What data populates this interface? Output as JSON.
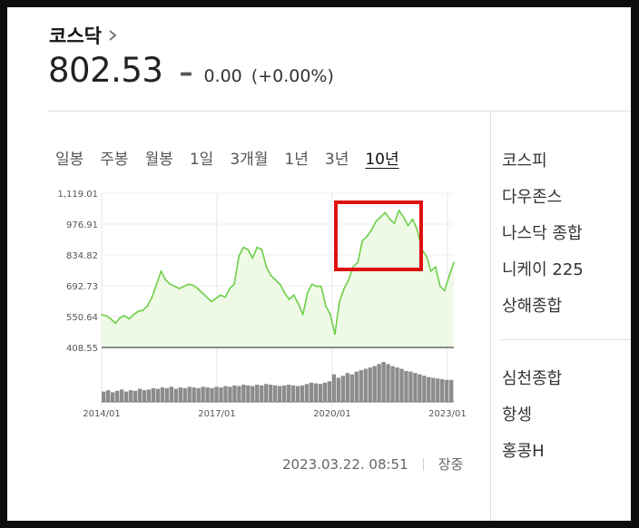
{
  "header": {
    "title": "코스닥",
    "price": "802.53",
    "change_sign": "–",
    "change": "0.00",
    "change_pct": "(+0.00%)"
  },
  "tabs": [
    {
      "label": "일봉",
      "active": false
    },
    {
      "label": "주봉",
      "active": false
    },
    {
      "label": "월봉",
      "active": false
    },
    {
      "label": "1일",
      "active": false
    },
    {
      "label": "3개월",
      "active": false
    },
    {
      "label": "1년",
      "active": false
    },
    {
      "label": "3년",
      "active": false
    },
    {
      "label": "10년",
      "active": true
    }
  ],
  "sidebar": {
    "group1": [
      "코스피",
      "다우존스",
      "나스닥 종합",
      "니케이 225",
      "상해종합"
    ],
    "group2": [
      "심천종합",
      "항셍",
      "홍콩H"
    ]
  },
  "footer": {
    "timestamp": "2023.03.22. 08:51",
    "status": "장중"
  },
  "colors": {
    "line": "#6fcf4a",
    "fill": "#eefae6",
    "volume": "#8c8c8c",
    "highlight": "#e01010"
  },
  "chart_data": {
    "type": "area",
    "x_start": "2014/01",
    "x_ticks": [
      "2014/01",
      "2017/01",
      "2020/01",
      "2023/01"
    ],
    "y_ticks": [
      "1,119.01",
      "976.91",
      "834.82",
      "692.73",
      "550.64",
      "408.55"
    ],
    "ylim": [
      408.55,
      1119.01
    ],
    "x_range": [
      "2014/01",
      "2023/03"
    ],
    "series": [
      {
        "values": [
          560,
          555,
          540,
          520,
          545,
          555,
          540,
          560,
          575,
          580,
          600,
          640,
          700,
          760,
          720,
          700,
          690,
          680,
          690,
          700,
          695,
          680,
          660,
          640,
          620,
          635,
          650,
          640,
          680,
          700,
          830,
          870,
          860,
          820,
          870,
          860,
          780,
          740,
          720,
          700,
          660,
          630,
          650,
          610,
          560,
          660,
          700,
          690,
          690,
          600,
          560,
          470,
          620,
          680,
          720,
          780,
          800,
          900,
          920,
          950,
          990,
          1010,
          1030,
          1000,
          980,
          1040,
          1010,
          970,
          1000,
          950,
          860,
          830,
          760,
          780,
          690,
          670,
          740,
          800
        ]
      }
    ],
    "volume": [
      15,
      17,
      14,
      16,
      18,
      15,
      17,
      16,
      19,
      17,
      18,
      20,
      19,
      21,
      20,
      22,
      19,
      21,
      20,
      22,
      21,
      20,
      22,
      21,
      20,
      22,
      21,
      23,
      22,
      24,
      23,
      25,
      24,
      23,
      25,
      24,
      26,
      25,
      24,
      23,
      24,
      25,
      24,
      23,
      24,
      26,
      28,
      27,
      26,
      28,
      30,
      40,
      35,
      38,
      42,
      40,
      44,
      46,
      48,
      50,
      52,
      55,
      58,
      55,
      52,
      50,
      48,
      45,
      44,
      42,
      40,
      38,
      36,
      35,
      34,
      33,
      32,
      32
    ]
  }
}
